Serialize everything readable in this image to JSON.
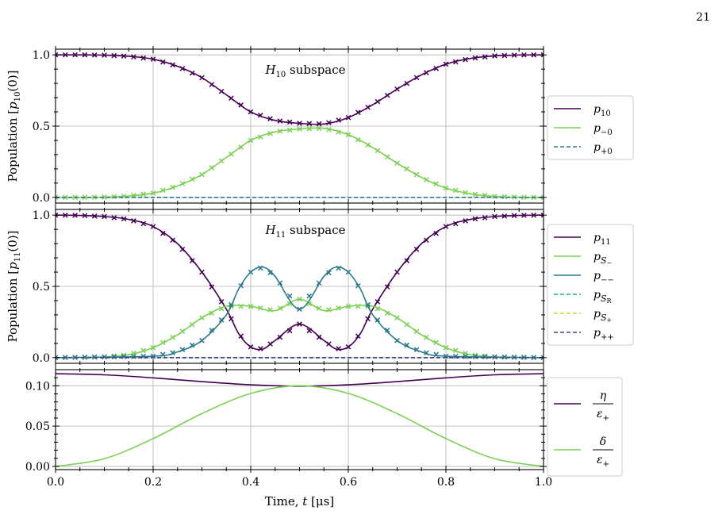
{
  "page_number": "21",
  "colors": {
    "dark_purple": "#440154",
    "light_green": "#7ad151",
    "teal": "#2a788e",
    "green_teal": "#22a884",
    "yellow_green": "#bddf26",
    "navy": "#414487",
    "grid": "#b0b0b0"
  },
  "chart_data": [
    {
      "type": "line",
      "title": "H10 subspace",
      "title_parts": {
        "base": "H",
        "sub": "10",
        "rest": " subspace"
      },
      "ylabel": "Population [p10(0)]",
      "ylabel_parts": {
        "pre": "Population [",
        "var": "p",
        "sub": "10",
        "post": "(0)]"
      },
      "xlim": [
        0,
        1
      ],
      "ylim": [
        -0.04,
        1.04
      ],
      "yticks": [
        0.0,
        0.5,
        1.0
      ],
      "ytick_labels": [
        "0.0",
        "0.5",
        "1.0"
      ],
      "grid": true,
      "legend_position": "outside-right",
      "series": [
        {
          "name": "p10",
          "label_parts": {
            "var": "p",
            "sub": "10"
          },
          "style": "solid-markers",
          "color_key": "dark_purple",
          "x": [
            0.0,
            0.05,
            0.1,
            0.15,
            0.2,
            0.25,
            0.3,
            0.35,
            0.4,
            0.45,
            0.5,
            0.55,
            0.6,
            0.65,
            0.7,
            0.75,
            0.8,
            0.85,
            0.9,
            0.95,
            1.0
          ],
          "values": [
            1.0,
            1.0,
            0.998,
            0.99,
            0.97,
            0.92,
            0.84,
            0.72,
            0.6,
            0.54,
            0.52,
            0.515,
            0.56,
            0.65,
            0.76,
            0.86,
            0.935,
            0.975,
            0.993,
            0.999,
            1.0
          ]
        },
        {
          "name": "p−0",
          "label_parts": {
            "var": "p",
            "sub": "−0"
          },
          "style": "solid-markers",
          "color_key": "light_green",
          "x": [
            0.0,
            0.05,
            0.1,
            0.15,
            0.2,
            0.25,
            0.3,
            0.35,
            0.4,
            0.45,
            0.5,
            0.55,
            0.6,
            0.65,
            0.7,
            0.75,
            0.8,
            0.85,
            0.9,
            0.95,
            1.0
          ],
          "values": [
            0.0,
            0.0,
            0.002,
            0.01,
            0.03,
            0.08,
            0.16,
            0.28,
            0.4,
            0.46,
            0.48,
            0.485,
            0.44,
            0.35,
            0.24,
            0.14,
            0.065,
            0.025,
            0.007,
            0.001,
            0.0
          ]
        },
        {
          "name": "p+0",
          "label_parts": {
            "var": "p",
            "sub": "+0"
          },
          "style": "dashed",
          "color_key": "teal",
          "x": [
            0.0,
            1.0
          ],
          "values": [
            0.0,
            0.0
          ]
        }
      ]
    },
    {
      "type": "line",
      "title": "H11 subspace",
      "title_parts": {
        "base": "H",
        "sub": "11",
        "rest": " subspace"
      },
      "ylabel": "Population [p11(0)]",
      "ylabel_parts": {
        "pre": "Population [",
        "var": "p",
        "sub": "11",
        "post": "(0)]"
      },
      "xlim": [
        0,
        1
      ],
      "ylim": [
        -0.04,
        1.04
      ],
      "yticks": [
        0.0,
        0.5,
        1.0
      ],
      "ytick_labels": [
        "0.0",
        "0.5",
        "1.0"
      ],
      "grid": true,
      "legend_position": "outside-right",
      "series": [
        {
          "name": "p11",
          "label_parts": {
            "var": "p",
            "sub": "11"
          },
          "style": "solid-markers",
          "color_key": "dark_purple",
          "x": [
            0.0,
            0.05,
            0.1,
            0.15,
            0.2,
            0.25,
            0.3,
            0.35,
            0.375,
            0.4,
            0.425,
            0.45,
            0.5,
            0.55,
            0.575,
            0.6,
            0.625,
            0.65,
            0.7,
            0.75,
            0.8,
            0.85,
            0.9,
            0.95,
            1.0
          ],
          "values": [
            1.0,
            0.998,
            0.99,
            0.97,
            0.92,
            0.8,
            0.6,
            0.34,
            0.17,
            0.075,
            0.06,
            0.12,
            0.235,
            0.12,
            0.06,
            0.075,
            0.17,
            0.34,
            0.6,
            0.8,
            0.92,
            0.97,
            0.99,
            0.998,
            1.0
          ]
        },
        {
          "name": "pS−",
          "label_parts": {
            "var": "p",
            "sub": "S",
            "subsub": "−"
          },
          "style": "solid-markers",
          "color_key": "light_green",
          "x": [
            0.0,
            0.05,
            0.1,
            0.15,
            0.2,
            0.25,
            0.3,
            0.35,
            0.4,
            0.45,
            0.5,
            0.55,
            0.6,
            0.65,
            0.7,
            0.75,
            0.8,
            0.85,
            0.9,
            0.95,
            1.0
          ],
          "values": [
            0.0,
            0.001,
            0.005,
            0.02,
            0.07,
            0.16,
            0.28,
            0.36,
            0.36,
            0.33,
            0.41,
            0.33,
            0.36,
            0.36,
            0.28,
            0.16,
            0.07,
            0.02,
            0.005,
            0.001,
            0.0
          ]
        },
        {
          "name": "p−−",
          "label_parts": {
            "var": "p",
            "sub": "−−"
          },
          "style": "solid-markers",
          "color_key": "teal",
          "x": [
            0.0,
            0.2,
            0.25,
            0.3,
            0.35,
            0.375,
            0.4,
            0.425,
            0.45,
            0.5,
            0.55,
            0.575,
            0.6,
            0.625,
            0.65,
            0.7,
            0.75,
            0.8,
            1.0
          ],
          "values": [
            0.0,
            0.01,
            0.04,
            0.12,
            0.3,
            0.48,
            0.6,
            0.635,
            0.57,
            0.34,
            0.57,
            0.635,
            0.6,
            0.48,
            0.3,
            0.12,
            0.04,
            0.01,
            0.0
          ]
        },
        {
          "name": "pSR",
          "label_parts": {
            "var": "p",
            "sub": "S",
            "subsub": "R"
          },
          "style": "dashed",
          "color_key": "green_teal",
          "x": [
            0.0,
            1.0
          ],
          "values": [
            0.0,
            0.0
          ]
        },
        {
          "name": "pS+",
          "label_parts": {
            "var": "p",
            "sub": "S",
            "subsub": "+"
          },
          "style": "dashed",
          "color_key": "yellow_green",
          "x": [
            0.0,
            1.0
          ],
          "values": [
            0.0,
            0.0
          ]
        },
        {
          "name": "p++",
          "label_parts": {
            "var": "p",
            "sub": "++"
          },
          "style": "dashed",
          "color_key": "navy",
          "x": [
            0.0,
            1.0
          ],
          "values": [
            0.0,
            0.0
          ]
        }
      ]
    },
    {
      "type": "line",
      "xlabel": "Time, t [μs]",
      "xlabel_parts": {
        "pre": "Time, ",
        "var": "t",
        "post": " [μs]"
      },
      "xlim": [
        0,
        1
      ],
      "ylim": [
        -0.004,
        0.12
      ],
      "xticks": [
        0.0,
        0.2,
        0.4,
        0.6,
        0.8,
        1.0
      ],
      "xtick_labels": [
        "0.0",
        "0.2",
        "0.4",
        "0.6",
        "0.8",
        "1.0"
      ],
      "yticks": [
        0.0,
        0.05,
        0.1
      ],
      "ytick_labels": [
        "0.00",
        "0.05",
        "0.10"
      ],
      "grid": true,
      "legend_position": "outside-right",
      "series": [
        {
          "name": "η/ε+",
          "label_parts": {
            "num": "η",
            "den": "ε",
            "den_sub": "+"
          },
          "style": "solid",
          "color_key": "dark_purple",
          "x": [
            0.0,
            0.1,
            0.2,
            0.3,
            0.4,
            0.5,
            0.6,
            0.7,
            0.8,
            0.9,
            1.0
          ],
          "values": [
            0.115,
            0.1136,
            0.1098,
            0.1052,
            0.1012,
            0.0995,
            0.1012,
            0.1052,
            0.1098,
            0.1136,
            0.115
          ]
        },
        {
          "name": "δ/ε+",
          "label_parts": {
            "num": "δ",
            "den": "ε",
            "den_sub": "+"
          },
          "style": "solid",
          "color_key": "light_green",
          "x": [
            0.0,
            0.1,
            0.2,
            0.3,
            0.4,
            0.5,
            0.6,
            0.7,
            0.8,
            0.9,
            1.0
          ],
          "values": [
            0.0,
            0.0095,
            0.0345,
            0.0655,
            0.0905,
            0.1,
            0.0905,
            0.0655,
            0.0345,
            0.0095,
            0.0
          ]
        }
      ]
    }
  ]
}
